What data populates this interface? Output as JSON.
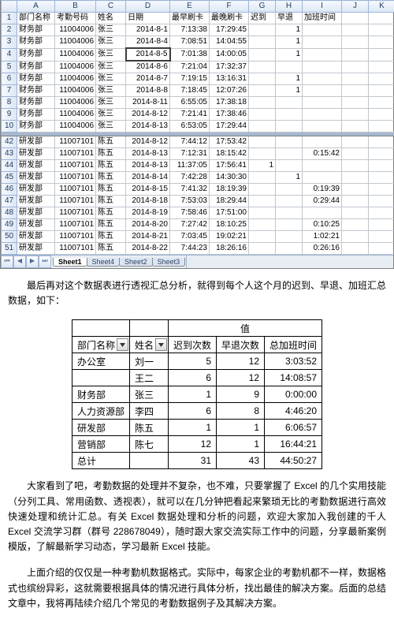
{
  "excel": {
    "column_letters": [
      "",
      "A",
      "B",
      "C",
      "D",
      "E",
      "F",
      "G",
      "H",
      "I",
      "J",
      "K"
    ],
    "selected_col": "D",
    "selected_rownum": "4",
    "headers_row": "1",
    "headers": {
      "A": "部门名称",
      "B": "考勤号码",
      "C": "姓名",
      "D": "日期",
      "E": "最早刷卡",
      "F": "最晚刷卡",
      "G": "迟到",
      "H": "早退",
      "I": "加班时间"
    },
    "rows_top": [
      {
        "n": "2",
        "A": "财务部",
        "B": "11004006",
        "C": "张三",
        "D": "2014-8-1",
        "E": "7:13:38",
        "F": "17:29:45",
        "G": "",
        "H": "1",
        "I": ""
      },
      {
        "n": "3",
        "A": "财务部",
        "B": "11004006",
        "C": "张三",
        "D": "2014-8-4",
        "E": "7:08:51",
        "F": "14:04:55",
        "G": "",
        "H": "1",
        "I": ""
      },
      {
        "n": "4",
        "A": "财务部",
        "B": "11004006",
        "C": "张三",
        "D": "2014-8-5",
        "E": "7:01:38",
        "F": "14:00:05",
        "G": "",
        "H": "1",
        "I": "",
        "active": true
      },
      {
        "n": "5",
        "A": "财务部",
        "B": "11004006",
        "C": "张三",
        "D": "2014-8-6",
        "E": "7:21:04",
        "F": "17:32:37",
        "G": "",
        "H": "",
        "I": ""
      },
      {
        "n": "6",
        "A": "财务部",
        "B": "11004006",
        "C": "张三",
        "D": "2014-8-7",
        "E": "7:19:15",
        "F": "13:16:31",
        "G": "",
        "H": "1",
        "I": ""
      },
      {
        "n": "7",
        "A": "财务部",
        "B": "11004006",
        "C": "张三",
        "D": "2014-8-8",
        "E": "7:18:45",
        "F": "12:07:26",
        "G": "",
        "H": "1",
        "I": ""
      },
      {
        "n": "8",
        "A": "财务部",
        "B": "11004006",
        "C": "张三",
        "D": "2014-8-11",
        "E": "6:55:05",
        "F": "17:38:18",
        "G": "",
        "H": "",
        "I": ""
      },
      {
        "n": "9",
        "A": "财务部",
        "B": "11004006",
        "C": "张三",
        "D": "2014-8-12",
        "E": "7:21:41",
        "F": "17:38:46",
        "G": "",
        "H": "",
        "I": ""
      },
      {
        "n": "10",
        "A": "财务部",
        "B": "11004006",
        "C": "张三",
        "D": "2014-8-13",
        "E": "6:53:05",
        "F": "17:29:44",
        "G": "",
        "H": "",
        "I": ""
      }
    ],
    "rows_bottom": [
      {
        "n": "42",
        "A": "研发部",
        "B": "11007101",
        "C": "陈五",
        "D": "2014-8-12",
        "E": "7:44:12",
        "F": "17:53:42",
        "G": "",
        "H": "",
        "I": ""
      },
      {
        "n": "43",
        "A": "研发部",
        "B": "11007101",
        "C": "陈五",
        "D": "2014-8-13",
        "E": "7:12:31",
        "F": "18:15:42",
        "G": "",
        "H": "",
        "I": "0:15:42"
      },
      {
        "n": "44",
        "A": "研发部",
        "B": "11007101",
        "C": "陈五",
        "D": "2014-8-13",
        "E": "11:37:05",
        "F": "17:56:41",
        "G": "1",
        "H": "",
        "I": ""
      },
      {
        "n": "45",
        "A": "研发部",
        "B": "11007101",
        "C": "陈五",
        "D": "2014-8-14",
        "E": "7:42:28",
        "F": "14:30:30",
        "G": "",
        "H": "1",
        "I": ""
      },
      {
        "n": "46",
        "A": "研发部",
        "B": "11007101",
        "C": "陈五",
        "D": "2014-8-15",
        "E": "7:41:32",
        "F": "18:19:39",
        "G": "",
        "H": "",
        "I": "0:19:39"
      },
      {
        "n": "47",
        "A": "研发部",
        "B": "11007101",
        "C": "陈五",
        "D": "2014-8-18",
        "E": "7:53:03",
        "F": "18:29:44",
        "G": "",
        "H": "",
        "I": "0:29:44"
      },
      {
        "n": "48",
        "A": "研发部",
        "B": "11007101",
        "C": "陈五",
        "D": "2014-8-19",
        "E": "7:58:46",
        "F": "17:51:00",
        "G": "",
        "H": "",
        "I": ""
      },
      {
        "n": "49",
        "A": "研发部",
        "B": "11007101",
        "C": "陈五",
        "D": "2014-8-20",
        "E": "7:27:42",
        "F": "18:10:25",
        "G": "",
        "H": "",
        "I": "0:10:25"
      },
      {
        "n": "50",
        "A": "研发部",
        "B": "11007101",
        "C": "陈五",
        "D": "2014-8-21",
        "E": "7:03:45",
        "F": "19:02:21",
        "G": "",
        "H": "",
        "I": "1:02:21"
      },
      {
        "n": "51",
        "A": "研发部",
        "B": "11007101",
        "C": "陈五",
        "D": "2014-8-22",
        "E": "7:44:23",
        "F": "18:26:16",
        "G": "",
        "H": "",
        "I": "0:26:16"
      }
    ],
    "sheet_tabs": [
      "Sheet1",
      "Sheet4",
      "Sheet2",
      "Sheet3"
    ],
    "active_sheet": "Sheet1"
  },
  "para1": "最后再对这个数据表进行透视汇总分析，就得到每个人这个月的迟到、早退、加班汇总数据，如下：",
  "summary": {
    "top_span_label": "值",
    "header_cols": [
      "部门名称",
      "姓名",
      "迟到次数",
      "早退次数",
      "总加班时间"
    ],
    "rows": [
      {
        "dept": "办公室",
        "name": "刘一",
        "late": "5",
        "early": "12",
        "ot": "3:03:52"
      },
      {
        "dept": "",
        "name": "王二",
        "late": "6",
        "early": "12",
        "ot": "14:08:57"
      },
      {
        "dept": "财务部",
        "name": "张三",
        "late": "1",
        "early": "9",
        "ot": "0:00:00"
      },
      {
        "dept": "人力资源部",
        "name": "李四",
        "late": "6",
        "early": "8",
        "ot": "4:46:20"
      },
      {
        "dept": "研发部",
        "name": "陈五",
        "late": "1",
        "early": "1",
        "ot": "6:06:57"
      },
      {
        "dept": "营销部",
        "name": "陈七",
        "late": "12",
        "early": "1",
        "ot": "16:44:21"
      }
    ],
    "total_row": {
      "label": "总计",
      "late": "31",
      "early": "43",
      "ot": "44:50:27"
    }
  },
  "para2": "大家看到了吧，考勤数据的处理并不复杂，也不难，只要掌握了 Excel 的几个实用技能（分列工具、常用函数、透视表），就可以在几分钟把看起来繁琐无比的考勤数据进行高效快速处理和统计汇总。有关 Excel 数据处理和分析的问题，欢迎大家加入我创建的千人 Excel 交流学习群（群号 228678049），随时跟大家交流实际工作中的问题，分享最新案例模版，了解最新学习动态，学习最新 Excel 技能。",
  "para3": "上面介绍的仅仅是一种考勤机数据格式。实际中，每家企业的考勤机都不一样，数据格式也缤纷异彩，这就需要根据具体的情况进行具体分析，找出最佳的解决方案。后面的总结文章中，我将再陆续介绍几个常见的考勤数据例子及其解决方案。"
}
